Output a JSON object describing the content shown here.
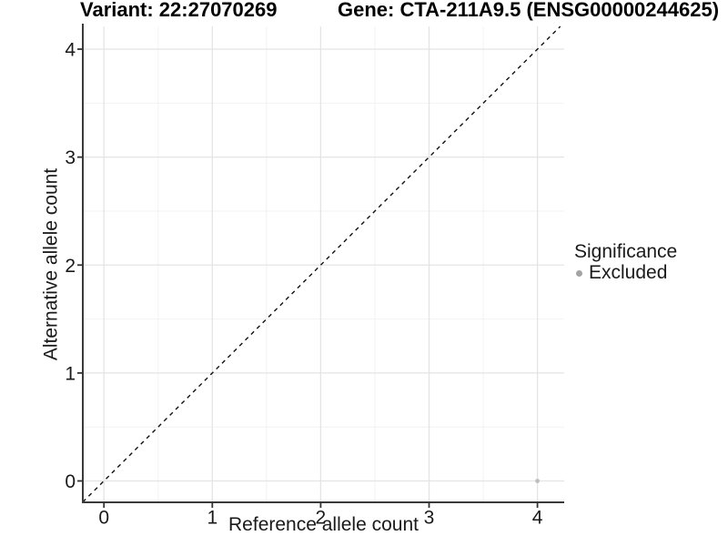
{
  "chart_data": {
    "type": "scatter",
    "title_left": "Variant: 22:27070269",
    "title_right": "Gene: CTA-211A9.5 (ENSG00000244625)",
    "xlabel": "Reference allele count",
    "ylabel": "Alternative allele count",
    "xlim": [
      -0.195,
      4.247
    ],
    "ylim": [
      -0.198,
      4.211
    ],
    "xticks": [
      0,
      1,
      2,
      3,
      4
    ],
    "yticks": [
      0,
      1,
      2,
      3,
      4
    ],
    "x_minor_ticks": [
      0.5,
      1.5,
      2.5,
      3.5
    ],
    "y_minor_ticks": [
      0.5,
      1.5,
      2.5,
      3.5
    ],
    "grid": true,
    "identity_line": {
      "slope": 1,
      "intercept": 0,
      "style": "dashed"
    },
    "series": [
      {
        "name": "Excluded",
        "points": [
          {
            "x": 4,
            "y": 0
          }
        ]
      }
    ],
    "legend": {
      "position": "right",
      "title": "Significance",
      "entries": [
        {
          "label": "Excluded",
          "marker": "dot"
        }
      ]
    }
  },
  "colors": {
    "background": "#ffffff",
    "grid_major": "#e4e4e4",
    "grid_minor": "#f2f2f2",
    "axis_line": "#3a3a3a",
    "tick_mark": "#333333",
    "text": "#1a1a1a",
    "title_text": "#000000",
    "identity_line": "#111111",
    "point": "#bdbdbd",
    "legend_dot": "#a4a4a4"
  }
}
